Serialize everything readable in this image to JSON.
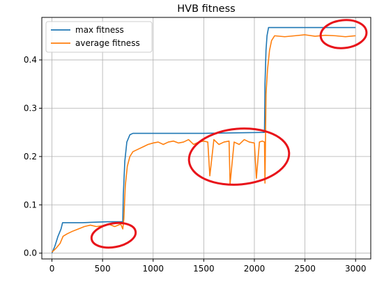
{
  "chart_data": {
    "type": "line",
    "title": "HVB fitness",
    "xlabel": "",
    "ylabel": "",
    "xlim": [
      -100,
      3150
    ],
    "ylim": [
      -0.012,
      0.488
    ],
    "xticks": [
      0,
      500,
      1000,
      1500,
      2000,
      2500,
      3000
    ],
    "xtick_labels": [
      "0",
      "500",
      "1000",
      "1500",
      "2000",
      "2500",
      "3000"
    ],
    "yticks": [
      0.0,
      0.1,
      0.2,
      0.3,
      0.4
    ],
    "ytick_labels": [
      "0.0",
      "0.1",
      "0.2",
      "0.3",
      "0.4"
    ],
    "grid": true,
    "legend_position": "top-left",
    "series": [
      {
        "name": "max fitness",
        "color": "#1f77b4",
        "x": [
          0,
          30,
          60,
          90,
          105,
          300,
          550,
          700,
          705,
          720,
          740,
          770,
          800,
          1500,
          2100,
          2105,
          2115,
          2125,
          2140,
          3000
        ],
        "y": [
          0.0,
          0.015,
          0.035,
          0.05,
          0.063,
          0.063,
          0.065,
          0.065,
          0.12,
          0.19,
          0.23,
          0.245,
          0.248,
          0.248,
          0.25,
          0.35,
          0.42,
          0.45,
          0.467,
          0.467
        ]
      },
      {
        "name": "average fitness",
        "color": "#ff7f0e",
        "x": [
          0,
          40,
          80,
          110,
          150,
          200,
          260,
          320,
          380,
          440,
          500,
          560,
          620,
          680,
          700,
          710,
          725,
          745,
          770,
          800,
          850,
          900,
          950,
          1000,
          1050,
          1100,
          1150,
          1200,
          1250,
          1300,
          1350,
          1400,
          1450,
          1500,
          1540,
          1560,
          1600,
          1650,
          1700,
          1750,
          1760,
          1800,
          1850,
          1900,
          1950,
          2000,
          2020,
          2050,
          2080,
          2100,
          2105,
          2115,
          2130,
          2150,
          2170,
          2200,
          2300,
          2400,
          2500,
          2600,
          2700,
          2800,
          2900,
          3000
        ],
        "y": [
          0.002,
          0.01,
          0.02,
          0.035,
          0.04,
          0.045,
          0.05,
          0.055,
          0.058,
          0.055,
          0.057,
          0.06,
          0.055,
          0.06,
          0.05,
          0.07,
          0.14,
          0.18,
          0.2,
          0.21,
          0.215,
          0.22,
          0.225,
          0.228,
          0.23,
          0.225,
          0.23,
          0.232,
          0.228,
          0.23,
          0.235,
          0.225,
          0.23,
          0.232,
          0.23,
          0.16,
          0.235,
          0.225,
          0.23,
          0.232,
          0.143,
          0.23,
          0.225,
          0.235,
          0.23,
          0.228,
          0.155,
          0.23,
          0.232,
          0.23,
          0.145,
          0.33,
          0.38,
          0.42,
          0.44,
          0.45,
          0.448,
          0.45,
          0.452,
          0.449,
          0.451,
          0.45,
          0.448,
          0.45
        ]
      }
    ]
  },
  "annotations": {
    "color": "#e8131a"
  }
}
